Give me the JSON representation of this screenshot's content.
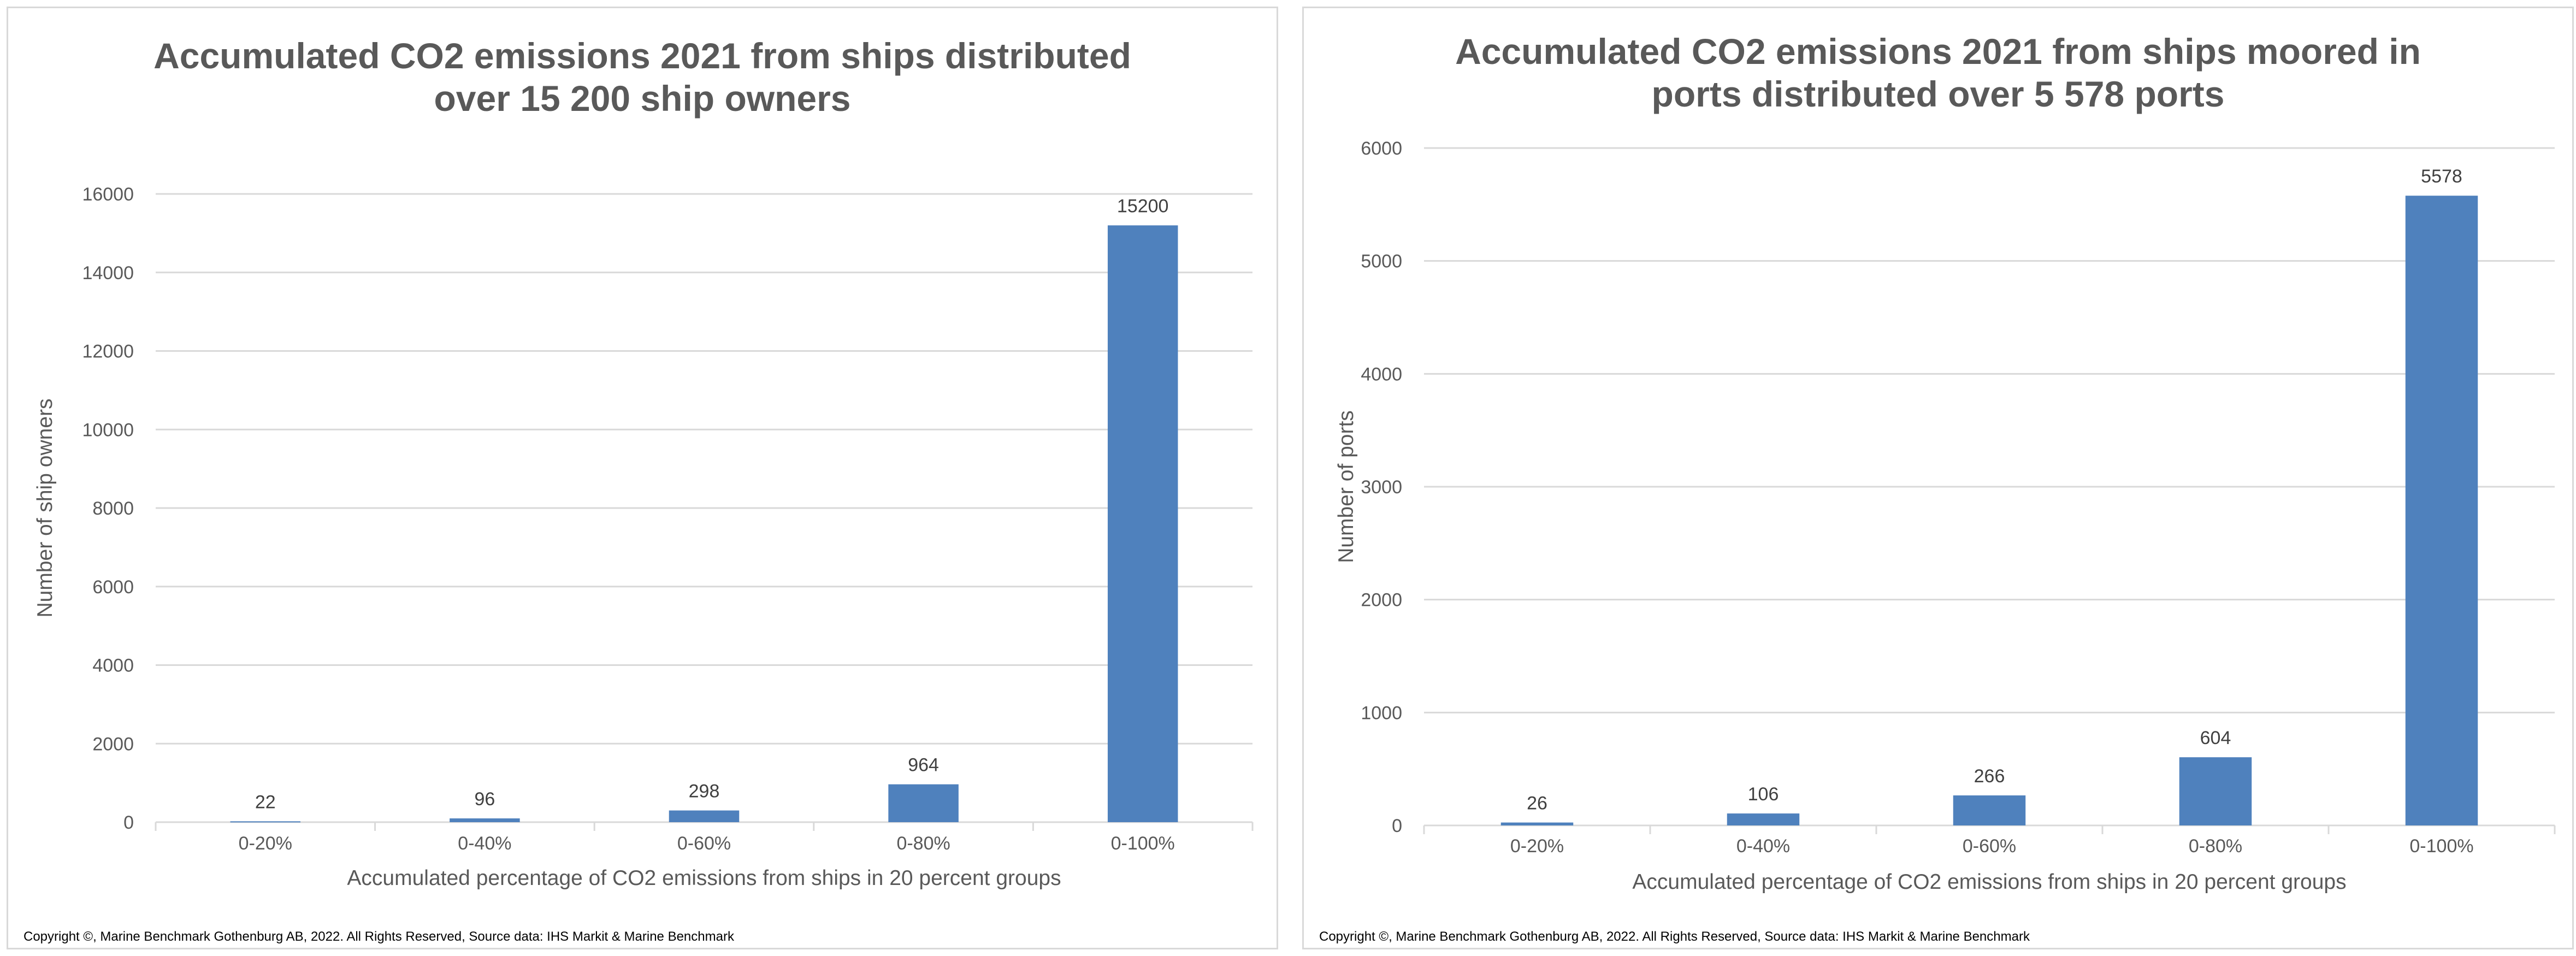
{
  "chart_data": [
    {
      "type": "bar",
      "title": "Accumulated CO2 emissions 2021 from ships distributed\nover 15 200 ship owners",
      "xlabel": "Accumulated percentage of CO2 emissions from ships in 20 percent groups",
      "ylabel": "Number of ship owners",
      "categories": [
        "0-20%",
        "0-40%",
        "0-60%",
        "0-80%",
        "0-100%"
      ],
      "values": [
        22,
        96,
        298,
        964,
        15200
      ],
      "ylim": [
        0,
        16000
      ],
      "yticks": [
        0,
        2000,
        4000,
        6000,
        8000,
        10000,
        12000,
        14000,
        16000
      ],
      "grid": true,
      "bar_color": "#4f81bd",
      "data_labels": true,
      "copyright": "Copyright ©, Marine Benchmark Gothenburg AB, 2022. All Rights Reserved, Source data: IHS Markit & Marine Benchmark"
    },
    {
      "type": "bar",
      "title": "Accumulated CO2 emissions 2021 from ships moored in\nports distributed over 5 578 ports",
      "xlabel": "Accumulated percentage of CO2 emissions from ships in 20 percent groups",
      "ylabel": "Number of ports",
      "categories": [
        "0-20%",
        "0-40%",
        "0-60%",
        "0-80%",
        "0-100%"
      ],
      "values": [
        26,
        106,
        266,
        604,
        5578
      ],
      "ylim": [
        0,
        6000
      ],
      "yticks": [
        0,
        1000,
        2000,
        3000,
        4000,
        5000,
        6000
      ],
      "grid": true,
      "bar_color": "#4f81bd",
      "data_labels": true,
      "copyright": "Copyright ©, Marine Benchmark Gothenburg AB, 2022. All Rights Reserved, Source data: IHS Markit & Marine Benchmark"
    }
  ]
}
